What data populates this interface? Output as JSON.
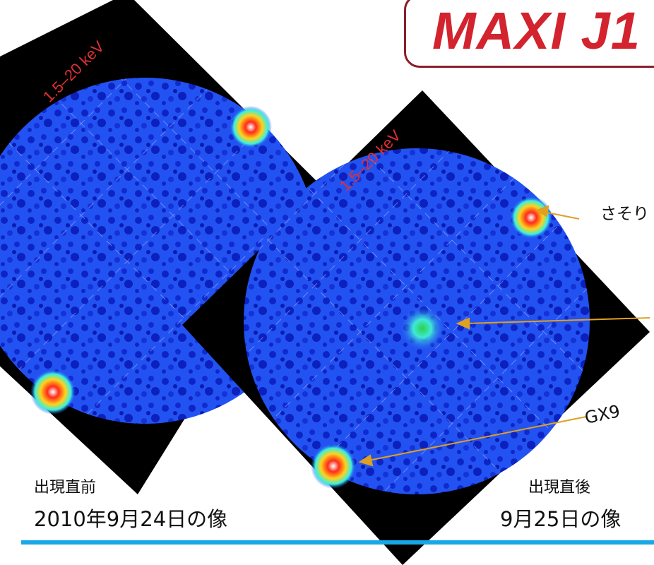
{
  "title": "MAXI J1",
  "left_image": {
    "energy_label": "1.5–20 keV",
    "caption_top": "出現直前",
    "caption_bottom": "2010年9月24日の像"
  },
  "right_image": {
    "energy_label": "1.5–20 keV",
    "caption_top": "出現直後",
    "caption_bottom": "9月25日の像"
  },
  "annotations": {
    "scorpius_label": "さそり",
    "gx_label": "GX9"
  },
  "colors": {
    "sky_blue": "#1f4cf0",
    "dark_blue": "#0a1fb8",
    "arrow": "#e0a020",
    "title_red": "#d2232e",
    "title_border": "#8b1e2b",
    "energy_label": "#e03030",
    "accent_line": "#18a8e8"
  }
}
